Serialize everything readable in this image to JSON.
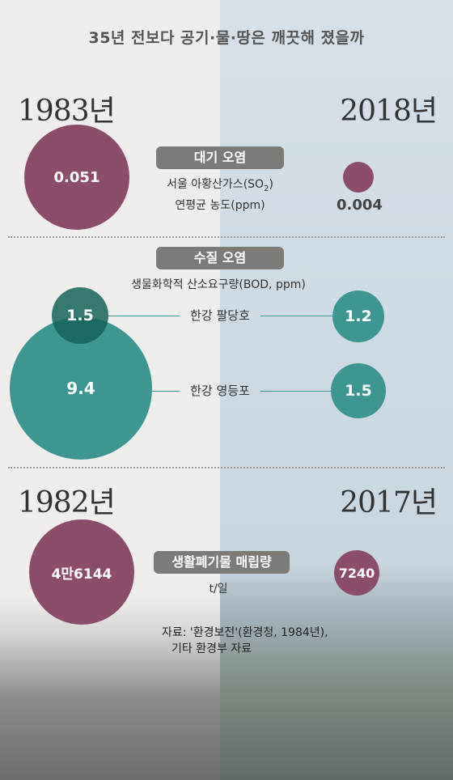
{
  "title": "35년 전보다 공기·물·땅은 깨끗해 졌을까",
  "years": {
    "air_left": "1983년",
    "air_right": "2018년",
    "waste_left": "1982년",
    "waste_right": "2017년"
  },
  "air": {
    "pill": "대기 오염",
    "desc_line1": "서울 아황산가스(SO",
    "desc_sub": "2",
    "desc_line1_end": ")",
    "desc_line2": "연평균 농도(ppm)",
    "value_1983": "0.051",
    "value_2018": "0.004"
  },
  "water": {
    "pill": "수질 오염",
    "desc": "생물화학적 산소요구량(BOD, ppm)",
    "paldang_label": "한강 팔당호",
    "paldang_1983": "1.5",
    "paldang_2018": "1.2",
    "yeongdeungpo_label": "한강 영등포",
    "yeongdeungpo_1983": "9.4",
    "yeongdeungpo_2018": "1.5"
  },
  "waste": {
    "pill": "생활폐기물 매립량",
    "unit": "t/일",
    "value_1982": "4만6144",
    "value_2017": "7240"
  },
  "source": {
    "line1": "자료: '환경보전'(환경청, 1984년),",
    "line2": "기타 환경부 자료"
  },
  "colors": {
    "plum": "#8c4d6a",
    "teal": "#3d9692",
    "pill": "#7d7b78"
  },
  "chart_data": [
    {
      "type": "bubble",
      "title": "대기 오염",
      "ylabel": "서울 아황산가스(SO2) 연평균 농도(ppm)",
      "categories": [
        "1983년",
        "2018년"
      ],
      "values": [
        0.051,
        0.004
      ]
    },
    {
      "type": "bubble",
      "title": "수질 오염",
      "ylabel": "생물화학적 산소요구량(BOD, ppm)",
      "categories": [
        "1983년",
        "2018년"
      ],
      "series": [
        {
          "name": "한강 팔당호",
          "values": [
            1.5,
            1.2
          ]
        },
        {
          "name": "한강 영등포",
          "values": [
            9.4,
            1.5
          ]
        }
      ]
    },
    {
      "type": "bubble",
      "title": "생활폐기물 매립량",
      "ylabel": "t/일",
      "categories": [
        "1982년",
        "2017년"
      ],
      "values": [
        46144,
        7240
      ]
    }
  ]
}
